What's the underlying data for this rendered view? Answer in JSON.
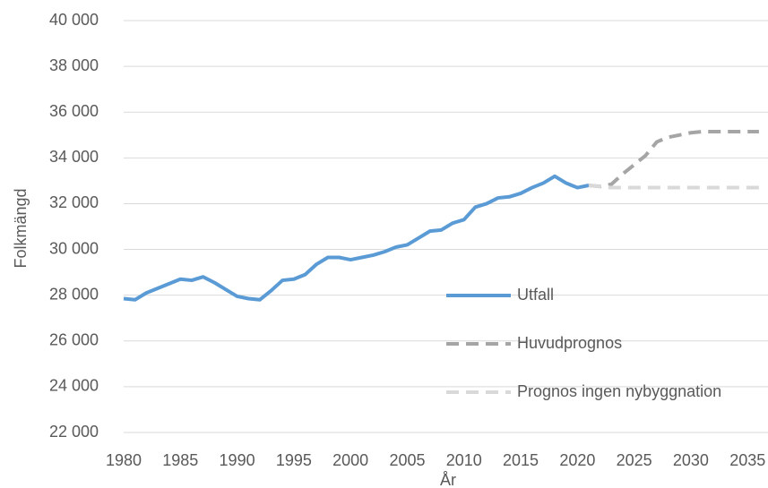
{
  "chart_data": {
    "type": "line",
    "x_label": "År",
    "y_label": "Folkmängd",
    "x": [
      1980,
      1981,
      1982,
      1983,
      1984,
      1985,
      1986,
      1987,
      1988,
      1989,
      1990,
      1991,
      1992,
      1993,
      1994,
      1995,
      1996,
      1997,
      1998,
      1999,
      2000,
      2001,
      2002,
      2003,
      2004,
      2005,
      2006,
      2007,
      2008,
      2009,
      2010,
      2011,
      2012,
      2013,
      2014,
      2015,
      2016,
      2017,
      2018,
      2019,
      2020,
      2021,
      2022,
      2023,
      2024,
      2025,
      2026,
      2027,
      2028,
      2029,
      2030,
      2031,
      2032,
      2033,
      2034,
      2035,
      2036
    ],
    "series": [
      {
        "name": "Utfall",
        "color": "#5b9bd5",
        "dash": "solid",
        "values": [
          27850,
          27800,
          28100,
          28300,
          28500,
          28700,
          28650,
          28800,
          28550,
          28250,
          27950,
          27850,
          27800,
          28200,
          28650,
          28700,
          28900,
          29350,
          29650,
          29650,
          29550,
          29650,
          29750,
          29900,
          30100,
          30200,
          30500,
          30800,
          30850,
          31150,
          31300,
          31850,
          32000,
          32250,
          32300,
          32450,
          32700,
          32900,
          33200,
          32900,
          32700,
          32800,
          null,
          null,
          null,
          null,
          null,
          null,
          null,
          null,
          null,
          null,
          null,
          null,
          null,
          null,
          null
        ]
      },
      {
        "name": "Huvudprognos",
        "color": "#a5a5a5",
        "dash": "dashed",
        "values": [
          null,
          null,
          null,
          null,
          null,
          null,
          null,
          null,
          null,
          null,
          null,
          null,
          null,
          null,
          null,
          null,
          null,
          null,
          null,
          null,
          null,
          null,
          null,
          null,
          null,
          null,
          null,
          null,
          null,
          null,
          null,
          null,
          null,
          null,
          null,
          null,
          null,
          null,
          null,
          null,
          null,
          32800,
          32750,
          32850,
          33300,
          33700,
          34100,
          34700,
          34900,
          35000,
          35100,
          35150,
          35150,
          35150,
          35150,
          35150,
          35150
        ]
      },
      {
        "name": "Prognos ingen nybyggnation",
        "color": "#d9d9d9",
        "dash": "dashed",
        "values": [
          null,
          null,
          null,
          null,
          null,
          null,
          null,
          null,
          null,
          null,
          null,
          null,
          null,
          null,
          null,
          null,
          null,
          null,
          null,
          null,
          null,
          null,
          null,
          null,
          null,
          null,
          null,
          null,
          null,
          null,
          null,
          null,
          null,
          null,
          null,
          null,
          null,
          null,
          null,
          null,
          null,
          32800,
          32750,
          32700,
          32700,
          32700,
          32700,
          32700,
          32700,
          32700,
          32700,
          32700,
          32700,
          32700,
          32700,
          32700,
          32700
        ]
      }
    ],
    "xlim": [
      1980,
      2036.8
    ],
    "xticks": [
      1980,
      1985,
      1990,
      1995,
      2000,
      2005,
      2010,
      2015,
      2020,
      2025,
      2030,
      2035
    ],
    "ylim": [
      22000,
      40000
    ],
    "yticks": [
      {
        "value": 22000,
        "label": "22 000"
      },
      {
        "value": 24000,
        "label": "24 000"
      },
      {
        "value": 26000,
        "label": "26 000"
      },
      {
        "value": 28000,
        "label": "28 000"
      },
      {
        "value": 30000,
        "label": "30 000"
      },
      {
        "value": 32000,
        "label": "32 000"
      },
      {
        "value": 34000,
        "label": "34 000"
      },
      {
        "value": 36000,
        "label": "36 000"
      },
      {
        "value": 38000,
        "label": "38 000"
      },
      {
        "value": 40000,
        "label": "40 000"
      }
    ],
    "grid": true,
    "legend": "right"
  }
}
